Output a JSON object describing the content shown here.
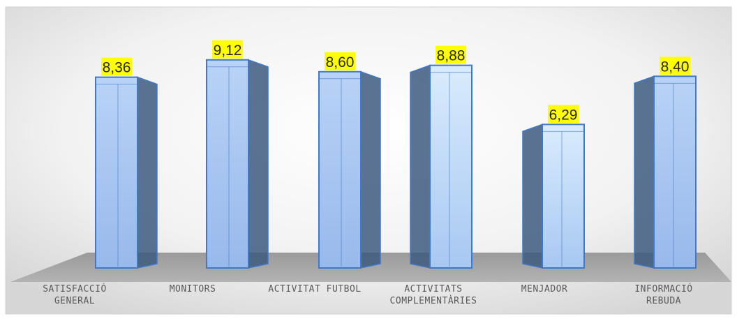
{
  "chart_data": {
    "type": "bar",
    "style": "3d-cylinder-box",
    "categories": [
      [
        "SATISFACCIÓ",
        "GENERAL"
      ],
      [
        "MONITORS"
      ],
      [
        "ACTIVITAT FUTBOL"
      ],
      [
        "ACTIVITATS",
        "COMPLEMENTÀRIES"
      ],
      [
        "MENJADOR"
      ],
      [
        "INFORMACIÓ",
        "REBUDA"
      ]
    ],
    "values": [
      8.36,
      9.12,
      8.6,
      8.88,
      6.29,
      8.4
    ],
    "value_labels": [
      "8,36",
      "9,12",
      "8,60",
      "8,88",
      "6,29",
      "8,40"
    ],
    "title": "",
    "xlabel": "",
    "ylabel": "",
    "grid": false,
    "legend": "none",
    "colors": {
      "bar_front": "#a4c2f0",
      "bar_front_light": "#cfe4fb",
      "bar_edge": "#3f79c9",
      "bar_side": "#3d5a80",
      "floor": "#a6a6a6",
      "label_highlight": "#ffff00",
      "background_center": "#ffffff",
      "background_edge": "#d9d9d9"
    }
  }
}
